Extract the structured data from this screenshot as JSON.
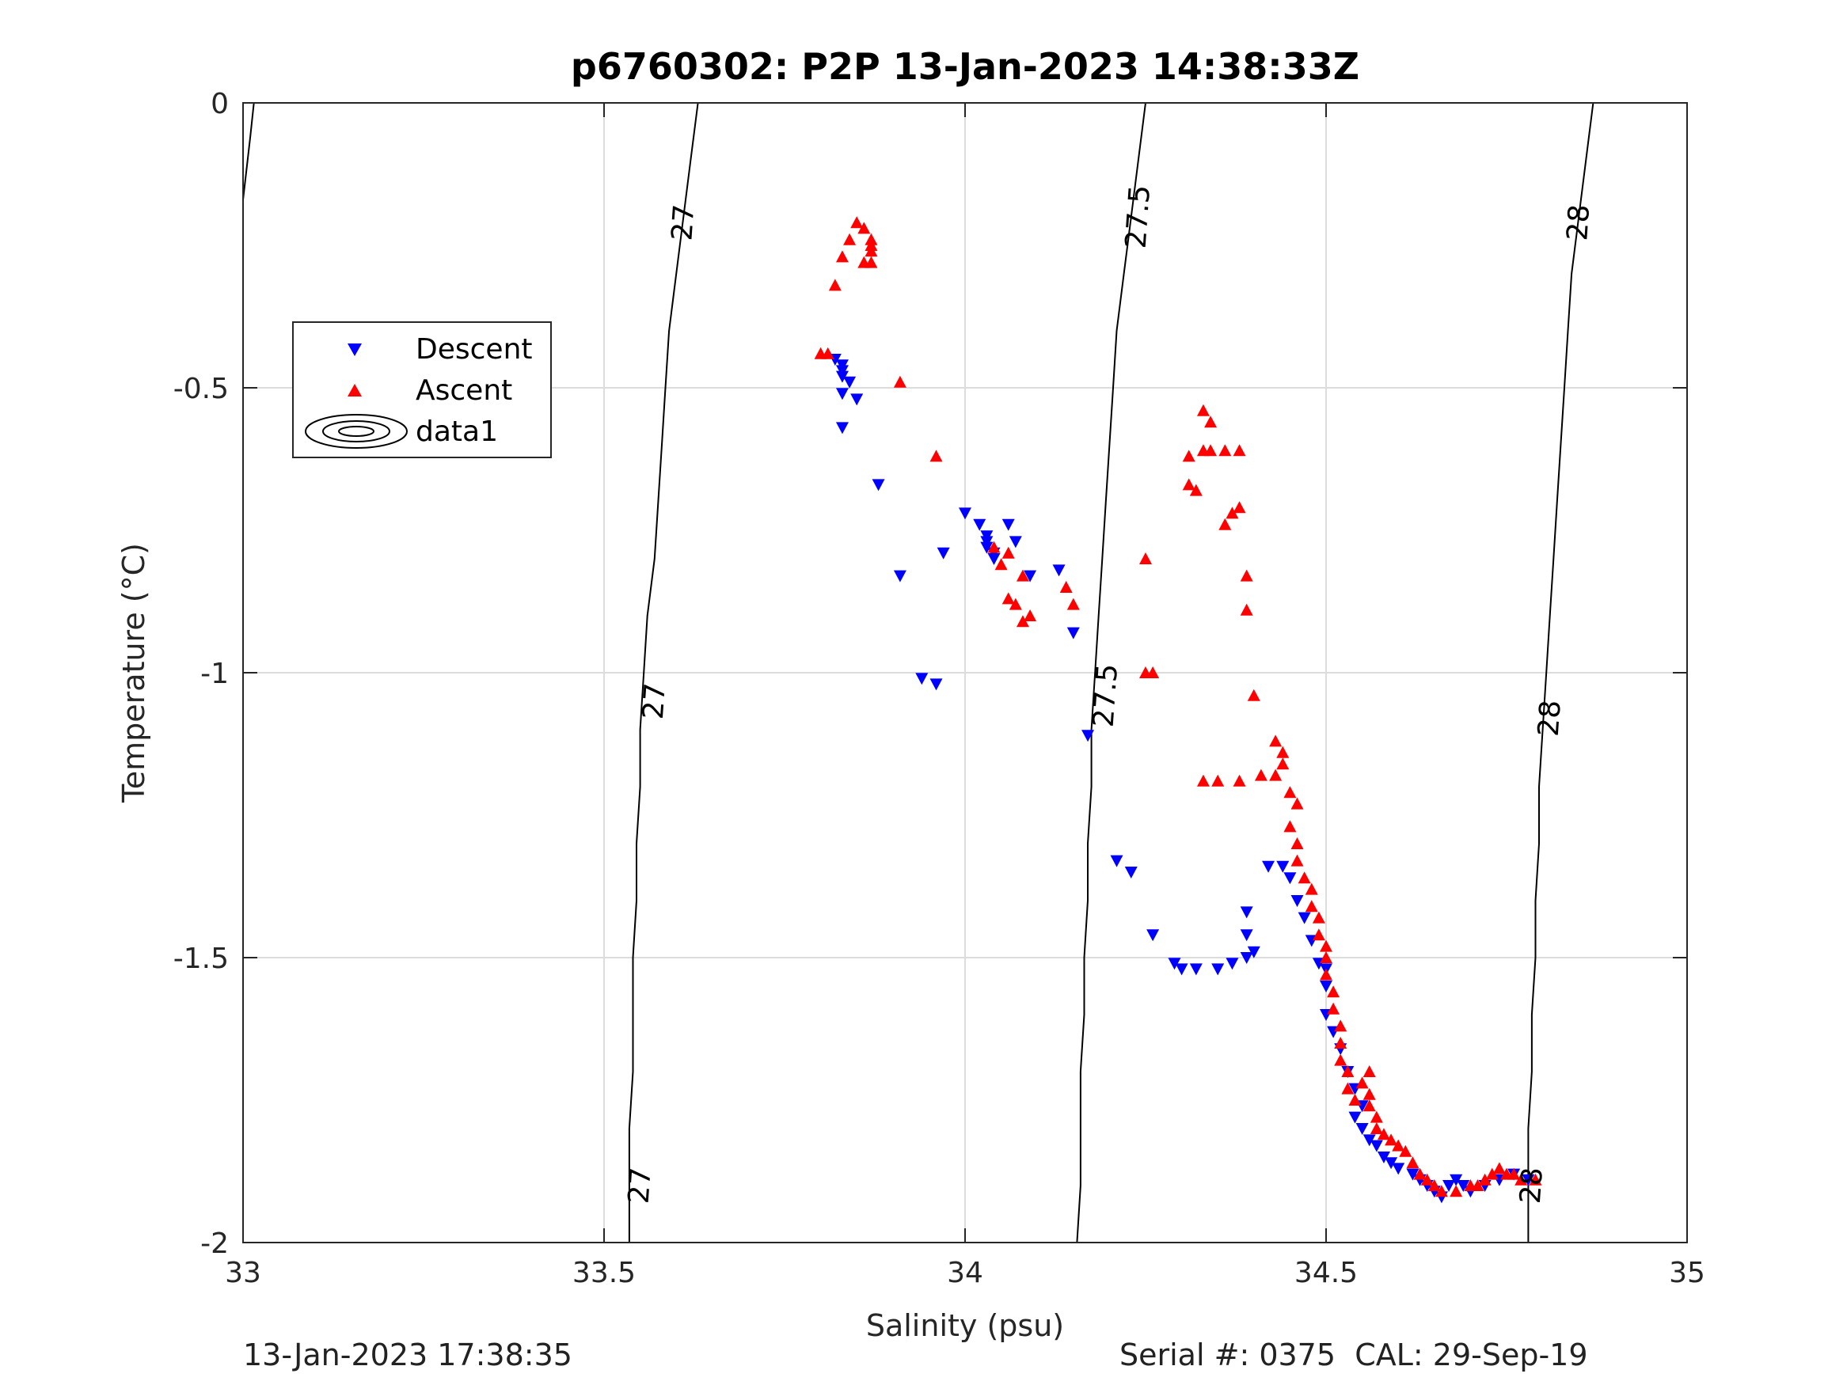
{
  "chart_data": {
    "type": "scatter",
    "title": "p6760302: P2P 13-Jan-2023 14:38:33Z",
    "xlabel": "Salinity (psu)",
    "ylabel": "Temperature (°C)",
    "xlim": [
      33,
      35
    ],
    "ylim": [
      -2,
      0
    ],
    "x_ticks": [
      33,
      33.5,
      34,
      34.5,
      35
    ],
    "x_tick_labels": [
      "33",
      "33.5",
      "34",
      "34.5",
      "35"
    ],
    "y_ticks": [
      -2,
      -1.5,
      -1,
      -0.5,
      0
    ],
    "y_tick_labels": [
      "-2",
      "-1.5",
      "-1",
      "-0.5",
      "0"
    ],
    "grid": true,
    "legend_position": "upper-left",
    "legend": [
      "Descent",
      "Ascent",
      "data1"
    ],
    "series": [
      {
        "name": "Descent",
        "marker": "triangle-down",
        "color": "#0000ff",
        "points": [
          [
            33.82,
            -0.45
          ],
          [
            33.83,
            -0.46
          ],
          [
            33.83,
            -0.47
          ],
          [
            33.83,
            -0.48
          ],
          [
            33.84,
            -0.49
          ],
          [
            33.83,
            -0.51
          ],
          [
            33.85,
            -0.52
          ],
          [
            33.83,
            -0.57
          ],
          [
            33.88,
            -0.67
          ],
          [
            33.91,
            -0.83
          ],
          [
            33.94,
            -1.01
          ],
          [
            33.96,
            -1.02
          ],
          [
            33.97,
            -0.79
          ],
          [
            34.0,
            -0.72
          ],
          [
            34.02,
            -0.74
          ],
          [
            34.03,
            -0.76
          ],
          [
            34.03,
            -0.77
          ],
          [
            34.03,
            -0.78
          ],
          [
            34.04,
            -0.79
          ],
          [
            34.04,
            -0.8
          ],
          [
            34.06,
            -0.74
          ],
          [
            34.07,
            -0.77
          ],
          [
            34.09,
            -0.83
          ],
          [
            34.13,
            -0.82
          ],
          [
            34.15,
            -0.93
          ],
          [
            34.17,
            -1.11
          ],
          [
            34.21,
            -1.33
          ],
          [
            34.23,
            -1.35
          ],
          [
            34.26,
            -1.46
          ],
          [
            34.29,
            -1.51
          ],
          [
            34.3,
            -1.52
          ],
          [
            34.32,
            -1.52
          ],
          [
            34.35,
            -1.52
          ],
          [
            34.37,
            -1.51
          ],
          [
            34.39,
            -1.46
          ],
          [
            34.39,
            -1.42
          ],
          [
            34.39,
            -1.5
          ],
          [
            34.4,
            -1.49
          ],
          [
            34.42,
            -1.34
          ],
          [
            34.44,
            -1.34
          ],
          [
            34.45,
            -1.36
          ],
          [
            34.46,
            -1.4
          ],
          [
            34.47,
            -1.43
          ],
          [
            34.48,
            -1.47
          ],
          [
            34.49,
            -1.51
          ],
          [
            34.5,
            -1.52
          ],
          [
            34.5,
            -1.55
          ],
          [
            34.5,
            -1.6
          ],
          [
            34.51,
            -1.63
          ],
          [
            34.52,
            -1.66
          ],
          [
            34.53,
            -1.7
          ],
          [
            34.54,
            -1.73
          ],
          [
            34.55,
            -1.76
          ],
          [
            34.54,
            -1.78
          ],
          [
            34.55,
            -1.8
          ],
          [
            34.56,
            -1.82
          ],
          [
            34.57,
            -1.83
          ],
          [
            34.58,
            -1.85
          ],
          [
            34.59,
            -1.86
          ],
          [
            34.6,
            -1.87
          ],
          [
            34.62,
            -1.88
          ],
          [
            34.63,
            -1.89
          ],
          [
            34.64,
            -1.9
          ],
          [
            34.65,
            -1.91
          ],
          [
            34.66,
            -1.92
          ],
          [
            34.67,
            -1.9
          ],
          [
            34.68,
            -1.89
          ],
          [
            34.69,
            -1.9
          ],
          [
            34.7,
            -1.91
          ],
          [
            34.72,
            -1.9
          ],
          [
            34.74,
            -1.89
          ],
          [
            34.76,
            -1.88
          ],
          [
            34.78,
            -1.89
          ]
        ]
      },
      {
        "name": "Ascent",
        "marker": "triangle-up",
        "color": "#ff0000",
        "points": [
          [
            33.85,
            -0.21
          ],
          [
            33.86,
            -0.22
          ],
          [
            33.84,
            -0.24
          ],
          [
            33.87,
            -0.24
          ],
          [
            33.87,
            -0.25
          ],
          [
            33.87,
            -0.26
          ],
          [
            33.83,
            -0.27
          ],
          [
            33.87,
            -0.28
          ],
          [
            33.86,
            -0.28
          ],
          [
            33.82,
            -0.32
          ],
          [
            33.8,
            -0.44
          ],
          [
            33.81,
            -0.44
          ],
          [
            33.91,
            -0.49
          ],
          [
            33.96,
            -0.62
          ],
          [
            34.04,
            -0.78
          ],
          [
            34.06,
            -0.79
          ],
          [
            34.05,
            -0.81
          ],
          [
            34.08,
            -0.83
          ],
          [
            34.06,
            -0.87
          ],
          [
            34.07,
            -0.88
          ],
          [
            34.08,
            -0.91
          ],
          [
            34.09,
            -0.9
          ],
          [
            34.14,
            -0.85
          ],
          [
            34.15,
            -0.88
          ],
          [
            34.25,
            -0.8
          ],
          [
            34.25,
            -1.0
          ],
          [
            34.26,
            -1.0
          ],
          [
            34.33,
            -0.54
          ],
          [
            34.34,
            -0.56
          ],
          [
            34.33,
            -0.61
          ],
          [
            34.34,
            -0.61
          ],
          [
            34.36,
            -0.61
          ],
          [
            34.38,
            -0.61
          ],
          [
            34.31,
            -0.62
          ],
          [
            34.31,
            -0.67
          ],
          [
            34.32,
            -0.68
          ],
          [
            34.36,
            -0.74
          ],
          [
            34.37,
            -0.72
          ],
          [
            34.38,
            -0.71
          ],
          [
            34.39,
            -0.83
          ],
          [
            34.39,
            -0.89
          ],
          [
            34.4,
            -1.04
          ],
          [
            34.33,
            -1.19
          ],
          [
            34.35,
            -1.19
          ],
          [
            34.38,
            -1.19
          ],
          [
            34.41,
            -1.18
          ],
          [
            34.43,
            -1.12
          ],
          [
            34.44,
            -1.14
          ],
          [
            34.44,
            -1.16
          ],
          [
            34.43,
            -1.18
          ],
          [
            34.45,
            -1.21
          ],
          [
            34.46,
            -1.23
          ],
          [
            34.45,
            -1.27
          ],
          [
            34.46,
            -1.3
          ],
          [
            34.46,
            -1.33
          ],
          [
            34.47,
            -1.36
          ],
          [
            34.48,
            -1.38
          ],
          [
            34.48,
            -1.41
          ],
          [
            34.49,
            -1.43
          ],
          [
            34.49,
            -1.46
          ],
          [
            34.5,
            -1.48
          ],
          [
            34.5,
            -1.5
          ],
          [
            34.5,
            -1.53
          ],
          [
            34.51,
            -1.56
          ],
          [
            34.51,
            -1.59
          ],
          [
            34.52,
            -1.62
          ],
          [
            34.52,
            -1.65
          ],
          [
            34.52,
            -1.68
          ],
          [
            34.53,
            -1.7
          ],
          [
            34.53,
            -1.73
          ],
          [
            34.54,
            -1.75
          ],
          [
            34.55,
            -1.72
          ],
          [
            34.56,
            -1.7
          ],
          [
            34.56,
            -1.74
          ],
          [
            34.56,
            -1.76
          ],
          [
            34.57,
            -1.78
          ],
          [
            34.57,
            -1.8
          ],
          [
            34.58,
            -1.81
          ],
          [
            34.59,
            -1.82
          ],
          [
            34.6,
            -1.83
          ],
          [
            34.61,
            -1.84
          ],
          [
            34.62,
            -1.86
          ],
          [
            34.63,
            -1.88
          ],
          [
            34.64,
            -1.89
          ],
          [
            34.65,
            -1.9
          ],
          [
            34.66,
            -1.91
          ],
          [
            34.68,
            -1.91
          ],
          [
            34.7,
            -1.9
          ],
          [
            34.71,
            -1.9
          ],
          [
            34.72,
            -1.89
          ],
          [
            34.73,
            -1.88
          ],
          [
            34.74,
            -1.87
          ],
          [
            34.75,
            -1.88
          ],
          [
            34.76,
            -1.88
          ],
          [
            34.77,
            -1.89
          ],
          [
            34.79,
            -1.89
          ]
        ]
      }
    ],
    "density_contours": [
      {
        "label": "27",
        "points": [
          [
            33.63,
            0
          ],
          [
            33.62,
            -0.1
          ],
          [
            33.61,
            -0.2
          ],
          [
            33.6,
            -0.3
          ],
          [
            33.59,
            -0.4
          ],
          [
            33.585,
            -0.5
          ],
          [
            33.58,
            -0.6
          ],
          [
            33.575,
            -0.7
          ],
          [
            33.57,
            -0.8
          ],
          [
            33.56,
            -0.9
          ],
          [
            33.555,
            -1.0
          ],
          [
            33.55,
            -1.1
          ],
          [
            33.55,
            -1.2
          ],
          [
            33.545,
            -1.3
          ],
          [
            33.545,
            -1.4
          ],
          [
            33.54,
            -1.5
          ],
          [
            33.54,
            -1.6
          ],
          [
            33.54,
            -1.7
          ],
          [
            33.535,
            -1.8
          ],
          [
            33.535,
            -1.9
          ],
          [
            33.535,
            -2.0
          ]
        ]
      },
      {
        "label": "27.5",
        "points": [
          [
            34.25,
            0
          ],
          [
            34.24,
            -0.1
          ],
          [
            34.23,
            -0.2
          ],
          [
            34.22,
            -0.3
          ],
          [
            34.21,
            -0.4
          ],
          [
            34.205,
            -0.5
          ],
          [
            34.2,
            -0.6
          ],
          [
            34.195,
            -0.7
          ],
          [
            34.19,
            -0.8
          ],
          [
            34.185,
            -0.9
          ],
          [
            34.18,
            -1.0
          ],
          [
            34.175,
            -1.1
          ],
          [
            34.175,
            -1.2
          ],
          [
            34.17,
            -1.3
          ],
          [
            34.17,
            -1.4
          ],
          [
            34.165,
            -1.5
          ],
          [
            34.165,
            -1.6
          ],
          [
            34.16,
            -1.7
          ],
          [
            34.16,
            -1.8
          ],
          [
            34.16,
            -1.9
          ],
          [
            34.155,
            -2.0
          ]
        ]
      },
      {
        "label": "28",
        "points": [
          [
            34.87,
            0
          ],
          [
            34.86,
            -0.1
          ],
          [
            34.85,
            -0.2
          ],
          [
            34.84,
            -0.3
          ],
          [
            34.835,
            -0.4
          ],
          [
            34.83,
            -0.5
          ],
          [
            34.825,
            -0.6
          ],
          [
            34.82,
            -0.7
          ],
          [
            34.815,
            -0.8
          ],
          [
            34.81,
            -0.9
          ],
          [
            34.805,
            -1.0
          ],
          [
            34.8,
            -1.1
          ],
          [
            34.795,
            -1.2
          ],
          [
            34.795,
            -1.3
          ],
          [
            34.79,
            -1.4
          ],
          [
            34.79,
            -1.5
          ],
          [
            34.785,
            -1.6
          ],
          [
            34.785,
            -1.7
          ],
          [
            34.78,
            -1.8
          ],
          [
            34.78,
            -1.9
          ],
          [
            34.78,
            -2.0
          ]
        ]
      },
      {
        "label": "",
        "points": [
          [
            33.015,
            0
          ],
          [
            33.01,
            -0.06
          ],
          [
            33.0,
            -0.17
          ]
        ]
      }
    ],
    "contour_labels": [
      {
        "text": "27",
        "x": 33.61,
        "y": -0.21
      },
      {
        "text": "27",
        "x": 33.57,
        "y": -1.05
      },
      {
        "text": "27",
        "x": 33.55,
        "y": -1.9
      },
      {
        "text": "27.5",
        "x": 34.24,
        "y": -0.2
      },
      {
        "text": "27.5",
        "x": 34.195,
        "y": -1.04
      },
      {
        "text": "28",
        "x": 34.85,
        "y": -0.21
      },
      {
        "text": "28",
        "x": 34.81,
        "y": -1.08
      },
      {
        "text": "28",
        "x": 34.785,
        "y": -1.9
      }
    ]
  },
  "footer": {
    "timestamp": "13-Jan-2023 17:38:35",
    "serial": "Serial #: 0375  CAL: 29-Sep-19"
  }
}
